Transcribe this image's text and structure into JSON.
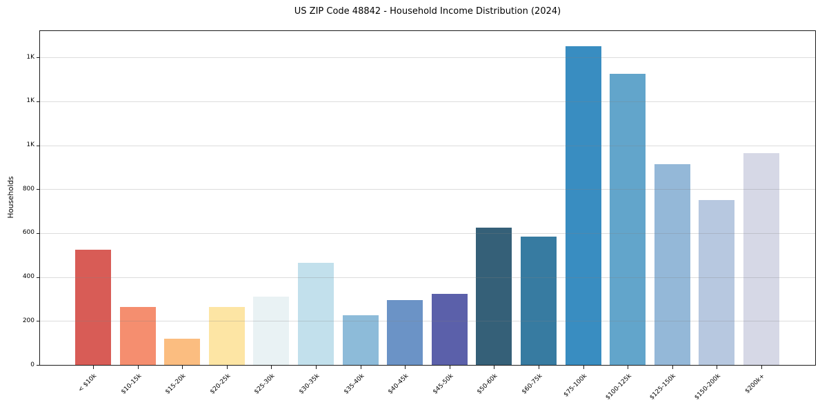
{
  "chart_data": {
    "type": "bar",
    "title": "US ZIP Code 48842 - Household Income Distribution (2024)",
    "xlabel": "",
    "ylabel": "Households",
    "categories": [
      "< $10k",
      "$10-15k",
      "$15-20k",
      "$20-25k",
      "$25-30k",
      "$30-35k",
      "$35-40k",
      "$40-45k",
      "$45-50k",
      "$50-60k",
      "$60-75k",
      "$75-100k",
      "$100-125k",
      "$125-150k",
      "$150-200k",
      "$200k+"
    ],
    "values": [
      525,
      265,
      120,
      265,
      310,
      465,
      225,
      295,
      325,
      625,
      585,
      1450,
      1325,
      915,
      750,
      965
    ],
    "bar_colors": [
      "#d85c56",
      "#f58e6f",
      "#fbbd80",
      "#fde5a4",
      "#e9f2f4",
      "#c2e0ec",
      "#8dbbd9",
      "#6b93c6",
      "#5b60aa",
      "#356078",
      "#377ba1",
      "#398dc1",
      "#62a5cb",
      "#94b8d8",
      "#b7c8e0",
      "#d6d8e6"
    ],
    "ylim": [
      0,
      1520
    ],
    "yticks": [
      {
        "value": 0,
        "label": "0"
      },
      {
        "value": 200,
        "label": "200"
      },
      {
        "value": 400,
        "label": "400"
      },
      {
        "value": 600,
        "label": "600"
      },
      {
        "value": 800,
        "label": "800"
      },
      {
        "value": 1000,
        "label": "1K"
      },
      {
        "value": 1200,
        "label": "1K"
      },
      {
        "value": 1400,
        "label": "1K"
      }
    ],
    "grid": "horizontal",
    "grid_above_bars": true,
    "legend": "none",
    "x_tick_rotation_deg": 45,
    "plot_bg": "#ffffff",
    "spine_color": "#1a1a1a"
  }
}
